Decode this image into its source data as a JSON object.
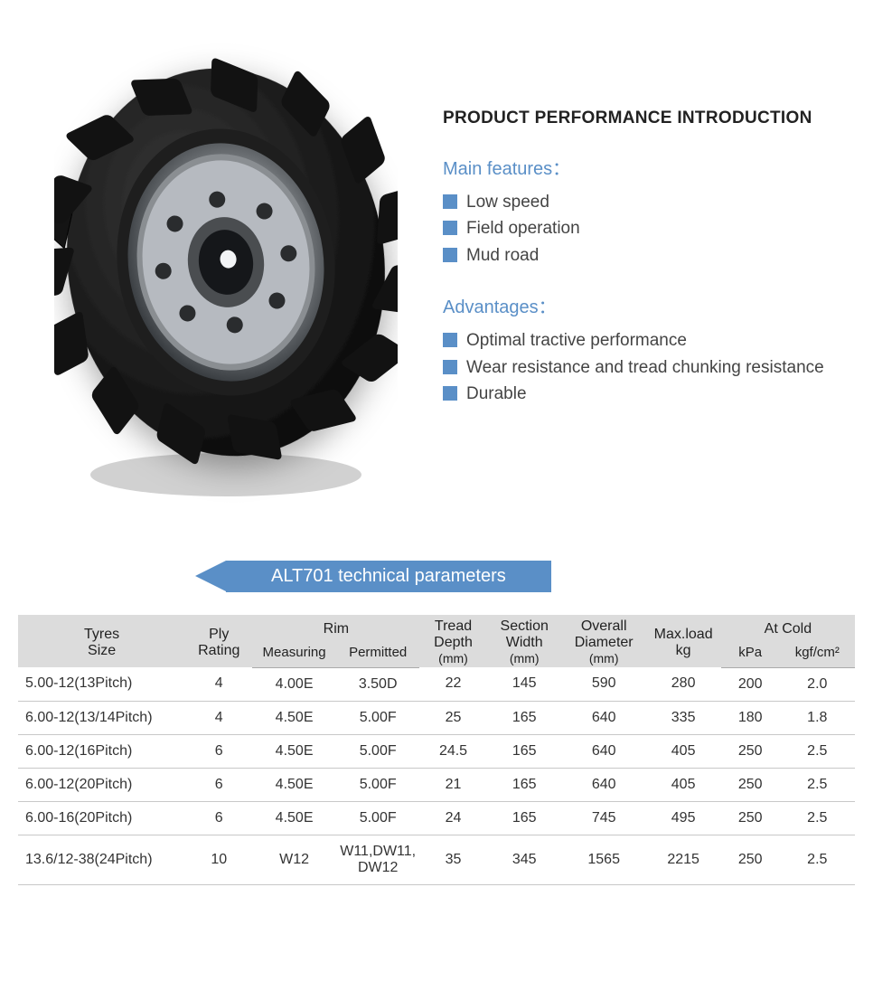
{
  "colors": {
    "accent": "#5a8fc7",
    "header_bg": "#dcdcdc",
    "row_border": "#c8c8c8",
    "text": "#333333",
    "tire_dark": "#1a1a1a",
    "tire_mid": "#3a3a3a",
    "rim_light": "#b8bcc0",
    "rim_dark": "#5a5e62"
  },
  "product_title": "PRODUCT PERFORMANCE INTRODUCTION",
  "features_label": "Main features：",
  "features": [
    "Low speed",
    "Field operation",
    "Mud road"
  ],
  "advantages_label": "Advantages：",
  "advantages": [
    "Optimal tractive performance",
    "Wear resistance and tread chunking resistance",
    "Durable"
  ],
  "table_title": "ALT701 technical parameters",
  "table": {
    "columns_top": [
      "Tyres Size",
      "Ply Rating",
      "Rim",
      "Tread Depth (mm)",
      "Section Width (mm)",
      "Overall Diameter (mm)",
      "Max.load kg",
      "At Cold"
    ],
    "rim_sub": [
      "Measuring",
      "Permitted"
    ],
    "cold_sub": [
      "kPa",
      "kgf/cm²"
    ],
    "rows": [
      [
        "5.00-12(13Pitch)",
        "4",
        "4.00E",
        "3.50D",
        "22",
        "145",
        "590",
        "280",
        "200",
        "2.0"
      ],
      [
        "6.00-12(13/14Pitch)",
        "4",
        "4.50E",
        "5.00F",
        "25",
        "165",
        "640",
        "335",
        "180",
        "1.8"
      ],
      [
        "6.00-12(16Pitch)",
        "6",
        "4.50E",
        "5.00F",
        "24.5",
        "165",
        "640",
        "405",
        "250",
        "2.5"
      ],
      [
        "6.00-12(20Pitch)",
        "6",
        "4.50E",
        "5.00F",
        "21",
        "165",
        "640",
        "405",
        "250",
        "2.5"
      ],
      [
        "6.00-16(20Pitch)",
        "6",
        "4.50E",
        "5.00F",
        "24",
        "165",
        "745",
        "495",
        "250",
        "2.5"
      ],
      [
        "13.6/12-38(24Pitch)",
        "10",
        "W12",
        "W11,DW11, DW12",
        "35",
        "345",
        "1565",
        "2215",
        "250",
        "2.5"
      ]
    ],
    "col_widths_pct": [
      20,
      8,
      10,
      10,
      8,
      9,
      10,
      9,
      7,
      9
    ]
  }
}
